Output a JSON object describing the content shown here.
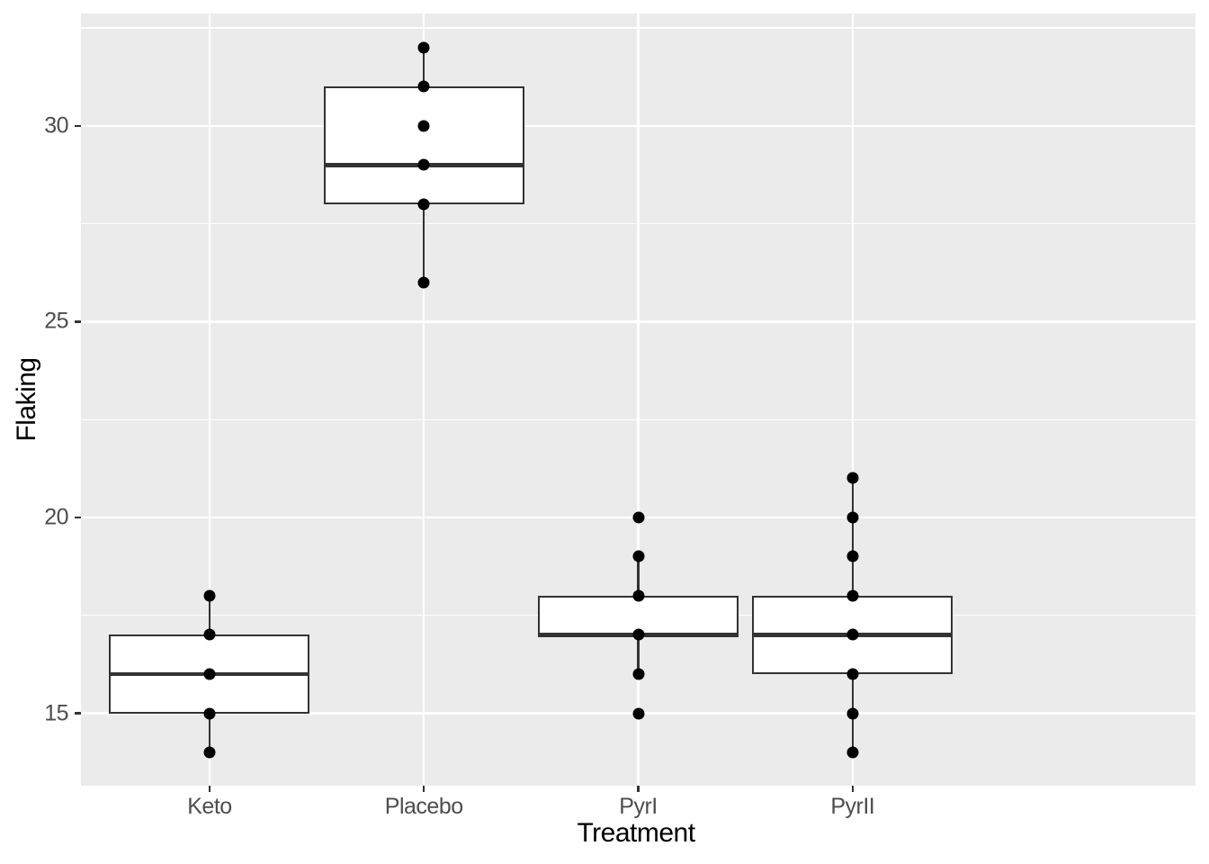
{
  "figure": {
    "background": "#ffffff",
    "panel_background": "#ebebeb",
    "grid_color": "#ffffff",
    "box_border_color": "#333333",
    "box_fill_color": "#ffffff",
    "point_color": "#000000",
    "tick_mark_color": "#333333",
    "tick_label_color": "#4d4d4d",
    "axis_title_color": "#000000"
  },
  "chart_data": {
    "type": "boxplot",
    "title": "",
    "xlabel": "Treatment",
    "ylabel": "Flaking",
    "categories": [
      "Keto",
      "Placebo",
      "PyrI",
      "PyrII"
    ],
    "y_axis": {
      "tick_labels": [
        "15",
        "20",
        "25",
        "30"
      ],
      "ticks": [
        15,
        20,
        25,
        30
      ],
      "minor_gridlines": [
        17.5,
        22.5,
        27.5,
        32.5
      ],
      "ylim": [
        13.15,
        32.87
      ]
    },
    "grid": "major-and-minor-horizontal, major-vertical-at-categories",
    "legend": "none",
    "series": [
      {
        "name": "Keto",
        "whisker_low": 14,
        "q1": 15,
        "median": 16,
        "q3": 17,
        "whisker_high": 18,
        "points": [
          14,
          15,
          16,
          17,
          18
        ]
      },
      {
        "name": "Placebo",
        "whisker_low": 26,
        "q1": 28,
        "median": 29,
        "q3": 31,
        "whisker_high": 32,
        "points": [
          26,
          28,
          29,
          30,
          31,
          32
        ]
      },
      {
        "name": "PyrI",
        "whisker_low": 16,
        "q1": 17,
        "median": 17,
        "q3": 18,
        "whisker_high": 19,
        "points": [
          15,
          16,
          17,
          18,
          19,
          20
        ]
      },
      {
        "name": "PyrII",
        "whisker_low": 14,
        "q1": 16,
        "median": 17,
        "q3": 18,
        "whisker_high": 21,
        "points": [
          14,
          15,
          16,
          17,
          18,
          19,
          20,
          21
        ]
      }
    ]
  }
}
